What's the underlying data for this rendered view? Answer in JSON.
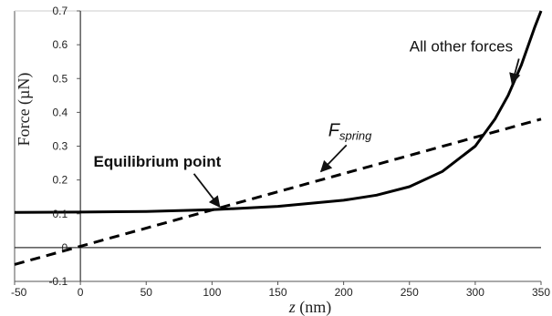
{
  "chart_data": {
    "type": "line",
    "xlabel": {
      "var": "z",
      "unit": " (nm)"
    },
    "ylabel": "Force (µN)",
    "xlim": [
      -50,
      350
    ],
    "ylim": [
      -0.1,
      0.7
    ],
    "x_ticks": [
      "-50",
      "0",
      "50",
      "100",
      "150",
      "200",
      "250",
      "300",
      "350"
    ],
    "y_ticks": [
      "-0.1",
      "0",
      "0.1",
      "0.2",
      "0.3",
      "0.4",
      "0.5",
      "0.6",
      "0.7"
    ],
    "grid": false,
    "series": [
      {
        "style": "solid",
        "x": [
          -50,
          0,
          50,
          100,
          150,
          200,
          225,
          250,
          275,
          300,
          315,
          325,
          335,
          345,
          350
        ],
        "y": [
          0.104,
          0.105,
          0.107,
          0.112,
          0.122,
          0.14,
          0.155,
          0.18,
          0.225,
          0.3,
          0.38,
          0.45,
          0.54,
          0.65,
          0.7
        ]
      },
      {
        "style": "dashed",
        "x": [
          -50,
          350
        ],
        "y": [
          -0.05,
          0.38
        ]
      }
    ],
    "annotations": [
      {
        "text": "All other forces",
        "tx": 250,
        "ty": 0.58,
        "ax": 328,
        "ay": 0.485
      },
      {
        "text": "F",
        "sub": "spring",
        "tx": 180,
        "ty": 0.33,
        "ax": 180,
        "ay": 0.225
      },
      {
        "text": "Equilibrium point",
        "tx": 10,
        "ty": 0.24,
        "ax": 103,
        "ay": 0.115
      }
    ]
  }
}
